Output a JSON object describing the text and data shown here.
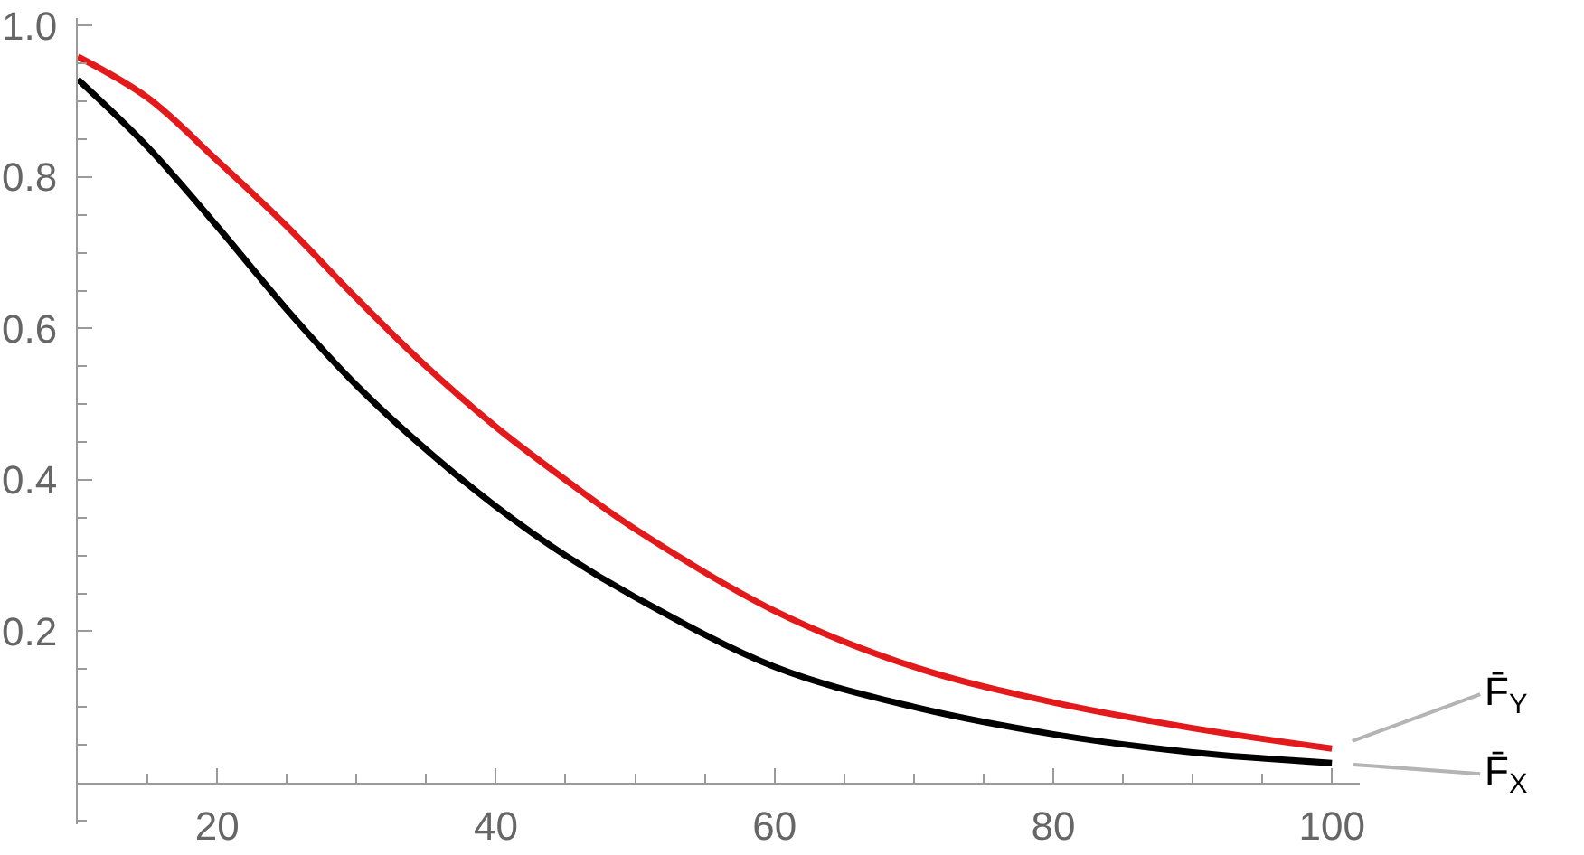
{
  "chart_data": {
    "type": "line",
    "xlim": [
      10,
      102
    ],
    "ylim": [
      -0.055,
      1.01
    ],
    "xticks": [
      {
        "value": 15,
        "label": null
      },
      20,
      {
        "value": 25,
        "label": null
      },
      {
        "value": 30,
        "label": null
      },
      {
        "value": 35,
        "label": null
      },
      40,
      {
        "value": 45,
        "label": null
      },
      {
        "value": 50,
        "label": null
      },
      {
        "value": 55,
        "label": null
      },
      60,
      {
        "value": 65,
        "label": null
      },
      {
        "value": 70,
        "label": null
      },
      {
        "value": 75,
        "label": null
      },
      80,
      {
        "value": 85,
        "label": null
      },
      {
        "value": 90,
        "label": null
      },
      {
        "value": 95,
        "label": null
      },
      100
    ],
    "yticks": [
      {
        "value": -0.05,
        "label": null
      },
      {
        "value": 0.05,
        "label": null
      },
      {
        "value": 0.1,
        "label": null
      },
      {
        "value": 0.15,
        "label": null
      },
      0.2,
      {
        "value": 0.25,
        "label": null
      },
      {
        "value": 0.3,
        "label": null
      },
      {
        "value": 0.35,
        "label": null
      },
      0.4,
      {
        "value": 0.45,
        "label": null
      },
      {
        "value": 0.5,
        "label": null
      },
      {
        "value": 0.55,
        "label": null
      },
      0.6,
      {
        "value": 0.65,
        "label": null
      },
      {
        "value": 0.7,
        "label": null
      },
      {
        "value": 0.75,
        "label": null
      },
      0.8,
      {
        "value": 0.85,
        "label": null
      },
      {
        "value": 0.9,
        "label": null
      },
      {
        "value": 0.95,
        "label": null
      },
      {
        "value": 1,
        "label": "1.0"
      }
    ],
    "line_style": "solid",
    "series": [
      {
        "name": "F̄$_{X}$",
        "color": "#000000",
        "x": [
          10,
          15,
          20,
          25,
          30,
          35,
          40,
          45,
          50,
          60,
          70,
          80,
          90,
          100
        ],
        "values": [
          0.929,
          0.84,
          0.735,
          0.625,
          0.525,
          0.44,
          0.365,
          0.3,
          0.245,
          0.153,
          0.1,
          0.064,
          0.04,
          0.026
        ]
      },
      {
        "name": "F̄$_{Y}$",
        "color": "#e31a1c",
        "x": [
          10,
          15,
          20,
          25,
          30,
          35,
          40,
          45,
          50,
          60,
          70,
          80,
          90,
          100
        ],
        "values": [
          0.959,
          0.905,
          0.822,
          0.735,
          0.64,
          0.55,
          0.47,
          0.4,
          0.335,
          0.227,
          0.153,
          0.106,
          0.072,
          0.045
        ]
      }
    ]
  }
}
